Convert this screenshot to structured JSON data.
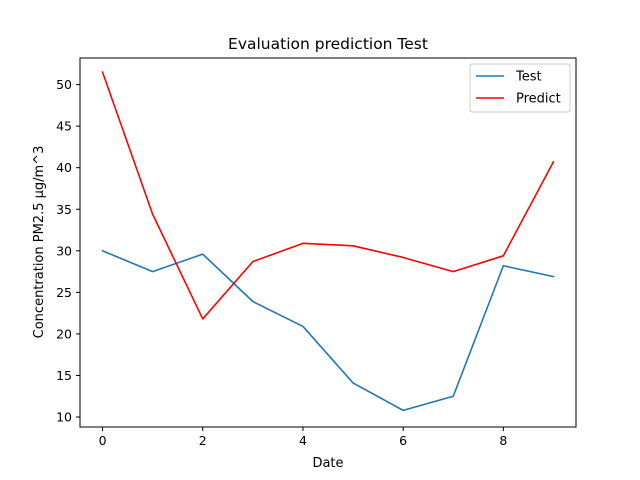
{
  "chart_data": {
    "type": "line",
    "title": "Evaluation prediction Test",
    "xlabel": "Date",
    "ylabel": "Concentration PM2.5 μg/m^3",
    "x": [
      0,
      1,
      2,
      3,
      4,
      5,
      6,
      7,
      8,
      9
    ],
    "xlim": [
      -0.45,
      9.45
    ],
    "ylim": [
      8.8,
      53.2
    ],
    "xticks": [
      0,
      2,
      4,
      6,
      8
    ],
    "yticks": [
      10,
      15,
      20,
      25,
      30,
      35,
      40,
      45,
      50
    ],
    "grid": false,
    "legend_position": "upper right",
    "series": [
      {
        "name": "Test",
        "color": "#1f77b4",
        "values": [
          30.0,
          27.5,
          29.6,
          23.9,
          20.9,
          14.1,
          10.8,
          12.5,
          28.2,
          26.9
        ]
      },
      {
        "name": "Predict",
        "color": "#ff0000",
        "values": [
          51.5,
          34.4,
          21.8,
          28.7,
          30.9,
          30.6,
          29.2,
          27.5,
          29.4,
          40.7
        ]
      }
    ]
  }
}
